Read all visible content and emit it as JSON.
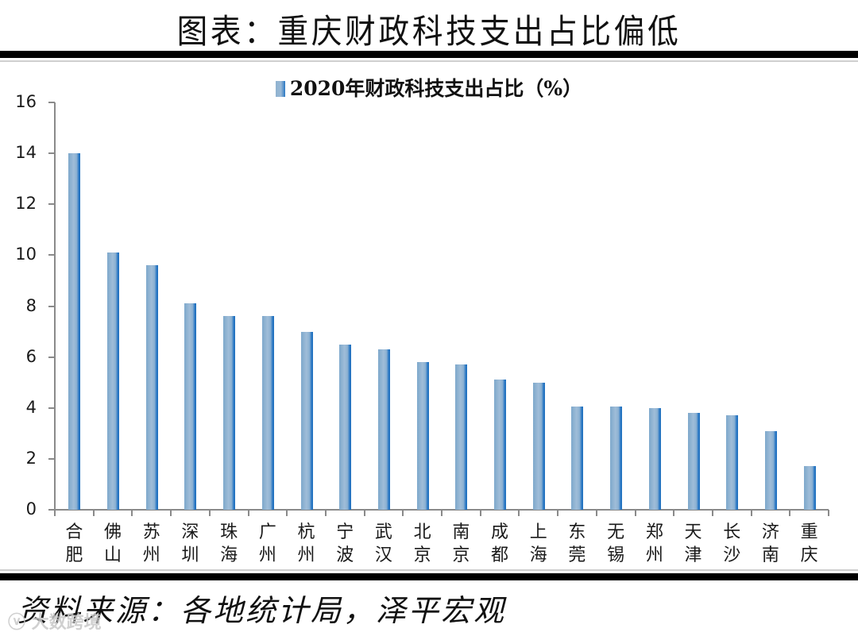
{
  "page": {
    "title": "图表：重庆财政科技支出占比偏低",
    "source": "资料来源：各地统计局，泽平宏观",
    "watermark": "ⓥ 大数跨境"
  },
  "colors": {
    "bar": "#5b9bd5",
    "bar_edge": "#1f6fbd",
    "axis": "#8a8a8a",
    "rule": "#000000"
  },
  "chart_data": {
    "type": "bar",
    "title": "",
    "legend": [
      "2020年财政科技支出占比（%）"
    ],
    "legend_position": "top",
    "xlabel": "",
    "ylabel": "",
    "ylim": [
      0,
      16
    ],
    "yticks": [
      0,
      2,
      4,
      6,
      8,
      10,
      12,
      14,
      16
    ],
    "grid": false,
    "categories": [
      "合肥",
      "佛山",
      "苏州",
      "深圳",
      "珠海",
      "广州",
      "杭州",
      "宁波",
      "武汉",
      "北京",
      "南京",
      "成都",
      "上海",
      "东莞",
      "无锡",
      "郑州",
      "天津",
      "长沙",
      "济南",
      "重庆"
    ],
    "category_lines": [
      [
        "合",
        "肥"
      ],
      [
        "佛",
        "山"
      ],
      [
        "苏",
        "州"
      ],
      [
        "深",
        "圳"
      ],
      [
        "珠",
        "海"
      ],
      [
        "广",
        "州"
      ],
      [
        "杭",
        "州"
      ],
      [
        "宁",
        "波"
      ],
      [
        "武",
        "汉"
      ],
      [
        "北",
        "京"
      ],
      [
        "南",
        "京"
      ],
      [
        "成",
        "都"
      ],
      [
        "上",
        "海"
      ],
      [
        "东",
        "莞"
      ],
      [
        "无",
        "锡"
      ],
      [
        "郑",
        "州"
      ],
      [
        "天",
        "津"
      ],
      [
        "长",
        "沙"
      ],
      [
        "济",
        "南"
      ],
      [
        "重",
        "庆"
      ]
    ],
    "series": [
      {
        "name": "2020年财政科技支出占比（%）",
        "values": [
          14.0,
          10.1,
          9.6,
          8.1,
          7.6,
          7.6,
          7.0,
          6.5,
          6.3,
          5.8,
          5.7,
          5.1,
          5.0,
          4.05,
          4.05,
          4.0,
          3.8,
          3.7,
          3.1,
          1.7
        ]
      }
    ]
  }
}
